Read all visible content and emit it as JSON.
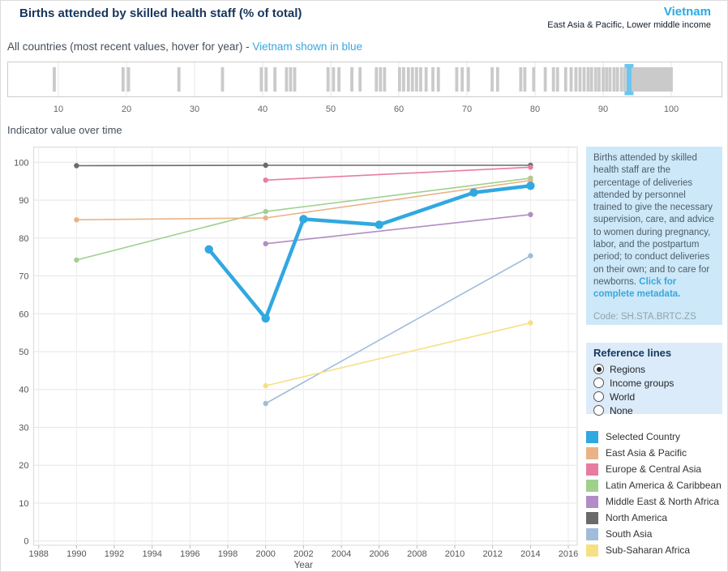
{
  "header": {
    "title": "Births attended by skilled health staff (% of total)",
    "country": "Vietnam",
    "country_meta": "East Asia & Pacific, Lower middle income"
  },
  "strip_header": {
    "label": "All countries (most recent values, hover for year) -",
    "link": "Vietnam shown in blue"
  },
  "section_label": "Indicator value over time",
  "chart_data": [
    {
      "type": "strip",
      "title": "All countries (most recent values)",
      "xlim": [
        2.5,
        107.5
      ],
      "x_ticks": [
        10,
        20,
        30,
        40,
        50,
        60,
        70,
        80,
        90,
        100
      ],
      "bar_color": "#cacaca",
      "grid": true,
      "selected": {
        "name": "Vietnam",
        "value": 93.8,
        "color": "#69c6ef"
      },
      "values": [
        9.4,
        19.5,
        20.3,
        27.7,
        34.1,
        39.8,
        40.5,
        41.8,
        43.5,
        44.1,
        44.7,
        49.6,
        50.4,
        51.2,
        53.1,
        54.3,
        56.7,
        57.3,
        57.9,
        60.1,
        60.7,
        61.4,
        62.0,
        62.6,
        63.2,
        64.0,
        65.0,
        65.8,
        68.5,
        69.3,
        70.2,
        73.7,
        74.5,
        77.9,
        78.5,
        79.8,
        81.5,
        82.7,
        83.3,
        84.5,
        85.3,
        86.0,
        86.6,
        87.2,
        87.8,
        88.3,
        88.9,
        89.4,
        90.0,
        90.5,
        91.0,
        91.6,
        92.1,
        92.7,
        93.2,
        94.3,
        94.7,
        95.1,
        95.5,
        95.8,
        96.1,
        96.4,
        96.7,
        97.0,
        97.3,
        97.6,
        97.9,
        98.2,
        98.5,
        98.8,
        99.0,
        99.2,
        99.4,
        99.6,
        99.8,
        100.0
      ]
    },
    {
      "type": "line",
      "title": "Indicator value over time",
      "xlabel": "Year",
      "ylabel": "",
      "xlim": [
        1988,
        2016
      ],
      "ylim": [
        0,
        100
      ],
      "x_ticks": [
        1988,
        1990,
        1992,
        1994,
        1996,
        1998,
        2000,
        2002,
        2004,
        2006,
        2008,
        2010,
        2012,
        2014,
        2016
      ],
      "y_ticks": [
        0,
        10,
        20,
        30,
        40,
        50,
        60,
        70,
        80,
        90,
        100
      ],
      "grid": true,
      "legend_position": "right",
      "series": [
        {
          "name": "Selected Country",
          "color": "#31a8e0",
          "width": 4.5,
          "z": 10,
          "selected": true,
          "points": [
            [
              1997,
              77
            ],
            [
              2000,
              58.8
            ],
            [
              2002,
              85
            ],
            [
              2006,
              83.5
            ],
            [
              2011,
              92
            ],
            [
              2014,
              93.8
            ]
          ]
        },
        {
          "name": "East Asia & Pacific",
          "color": "#e9b387",
          "width": 1.6,
          "z": 4,
          "selected": false,
          "points": [
            [
              1990,
              84.8
            ],
            [
              2000,
              85.3
            ],
            [
              2014,
              95.2
            ]
          ]
        },
        {
          "name": "Europe & Central Asia",
          "color": "#e87c9f",
          "width": 1.6,
          "z": 6,
          "selected": false,
          "points": [
            [
              2000,
              95.3
            ],
            [
              2014,
              98.7
            ]
          ]
        },
        {
          "name": "Latin America & Caribbean",
          "color": "#9fd08e",
          "width": 1.6,
          "z": 3,
          "selected": false,
          "points": [
            [
              1990,
              74.2
            ],
            [
              2000,
              87
            ],
            [
              2014,
              95.8
            ]
          ]
        },
        {
          "name": "Middle East & North Africa",
          "color": "#b28cc4",
          "width": 1.6,
          "z": 2,
          "selected": false,
          "points": [
            [
              2000,
              78.5
            ],
            [
              2014,
              86.2
            ]
          ]
        },
        {
          "name": "North America",
          "color": "#6a6a6a",
          "width": 1.6,
          "z": 5,
          "selected": false,
          "points": [
            [
              1990,
              99.1
            ],
            [
              2000,
              99.2
            ],
            [
              2014,
              99.2
            ]
          ]
        },
        {
          "name": "South Asia",
          "color": "#a0bcdb",
          "width": 1.6,
          "z": 1,
          "selected": false,
          "points": [
            [
              2000,
              36.3
            ],
            [
              2014,
              75.3
            ]
          ]
        },
        {
          "name": "Sub-Saharan Africa",
          "color": "#f6e085",
          "width": 1.6,
          "z": 1,
          "selected": false,
          "points": [
            [
              2000,
              41
            ],
            [
              2014,
              57.6
            ]
          ]
        }
      ]
    }
  ],
  "sidebar": {
    "description": "Births attended by skilled health staff are the percentage of deliveries attended by personnel trained to give the necessary supervision, care, and advice to women during pregnancy, labor, and the postpartum period; to conduct deliveries on their own; and to care for newborns.",
    "metadata_link": "Click for complete metadata.",
    "code": "Code: SH.STA.BRTC.ZS",
    "reference_lines": {
      "title": "Reference lines",
      "options": [
        {
          "label": "Regions",
          "selected": true
        },
        {
          "label": "Income groups",
          "selected": false
        },
        {
          "label": "World",
          "selected": false
        },
        {
          "label": "None",
          "selected": false
        }
      ]
    },
    "legend": {
      "items": [
        {
          "label": "Selected Country",
          "color": "#31a8e0"
        },
        {
          "label": "East Asia & Pacific",
          "color": "#e9b387"
        },
        {
          "label": "Europe & Central Asia",
          "color": "#e87c9f"
        },
        {
          "label": "Latin America & Caribbean",
          "color": "#9fd08e"
        },
        {
          "label": "Middle East & North Africa",
          "color": "#b28cc4"
        },
        {
          "label": "North America",
          "color": "#6a6a6a"
        },
        {
          "label": "South Asia",
          "color": "#a0bcdb"
        },
        {
          "label": "Sub-Saharan Africa",
          "color": "#f6e085"
        }
      ]
    }
  }
}
